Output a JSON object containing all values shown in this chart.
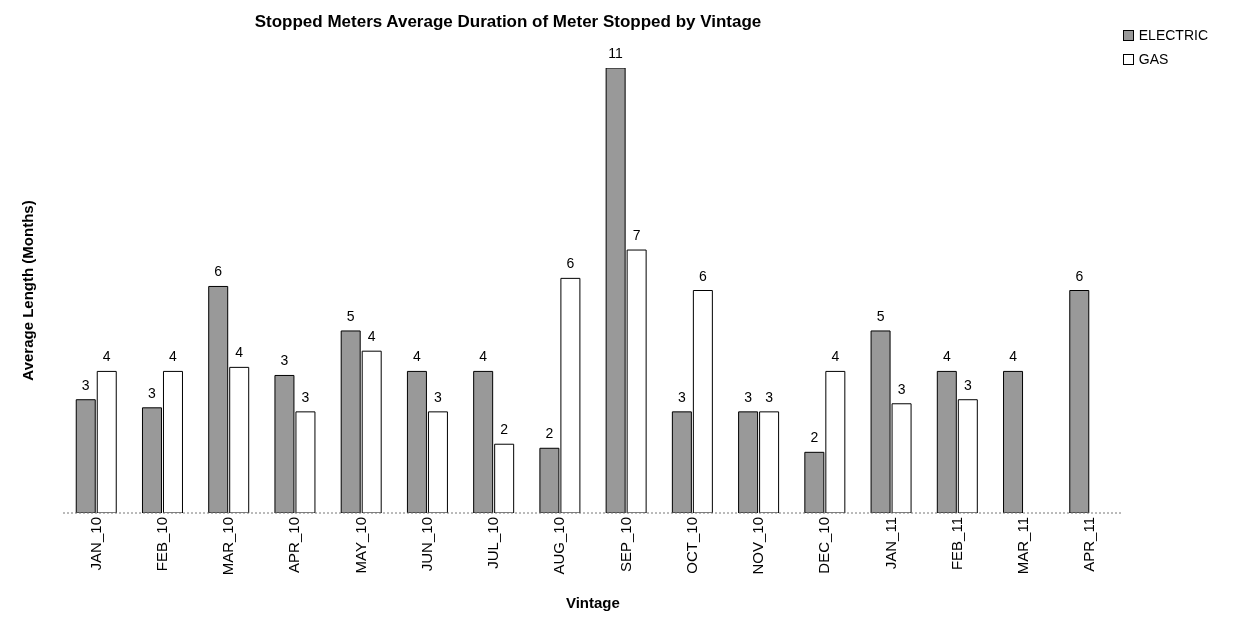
{
  "chart_data": {
    "type": "bar",
    "title": "Stopped Meters Average Duration of Meter Stopped by Vintage",
    "xlabel": "Vintage",
    "ylabel": "Average Length (Months)",
    "legend": "top right",
    "tick_labels": "x",
    "ylim": [
      0,
      11
    ],
    "categories": [
      "JAN_10",
      "FEB_10",
      "MAR_10",
      "APR_10",
      "MAY_10",
      "JUN_10",
      "JUL_10",
      "AUG_10",
      "SEP_10",
      "OCT_10",
      "NOV_10",
      "DEC_10",
      "JAN_11",
      "FEB_11",
      "MAR_11",
      "APR_11"
    ],
    "series": [
      {
        "name": "ELECTRIC",
        "color": "#999999",
        "values": [
          2.8,
          2.6,
          5.6,
          3.4,
          4.5,
          3.5,
          3.5,
          1.6,
          11,
          2.5,
          2.5,
          1.5,
          4.5,
          3.5,
          3.5,
          5.5
        ],
        "value_labels": [
          "3",
          "3",
          "6",
          "3",
          "5",
          "4",
          "4",
          "2",
          "11",
          "3",
          "3",
          "2",
          "5",
          "4",
          "4",
          "6"
        ]
      },
      {
        "name": "GAS",
        "color": "#ffffff",
        "values": [
          3.5,
          3.5,
          3.6,
          2.5,
          4.0,
          2.5,
          1.7,
          5.8,
          6.5,
          5.5,
          2.5,
          3.5,
          2.7,
          2.8,
          null,
          null
        ],
        "value_labels": [
          "4",
          "4",
          "4",
          "3",
          "4",
          "3",
          "2",
          "6",
          "7",
          "6",
          "3",
          "4",
          "3",
          "3",
          null,
          null
        ]
      }
    ]
  }
}
